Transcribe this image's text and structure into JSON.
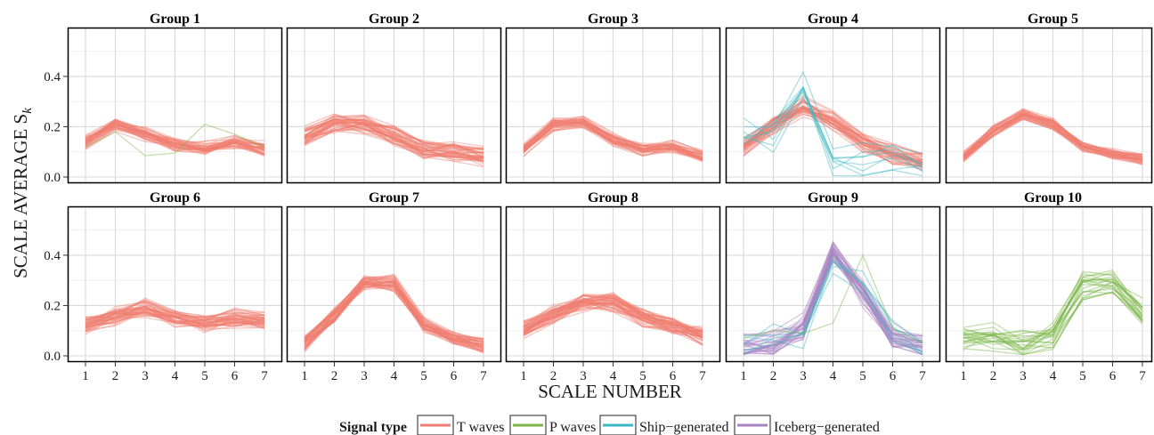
{
  "chart_data": {
    "type": "line",
    "subtype": "small-multiples parallel lines",
    "xlabel": "SCALE NUMBER",
    "ylabel_main": "SCALE AVERAGE S",
    "ylabel_sub": "k",
    "x": [
      1,
      2,
      3,
      4,
      5,
      6,
      7
    ],
    "ylim": [
      0,
      0.58
    ],
    "yticks": [
      "0.0",
      "0.2",
      "0.4"
    ],
    "grid": true,
    "legend": {
      "title": "Signal type",
      "placement": "bottom",
      "items": [
        {
          "label": "T waves",
          "color": "#f07e72"
        },
        {
          "label": "P waves",
          "color": "#7ab648"
        },
        {
          "label": "Ship−generated",
          "color": "#3cb8c4"
        },
        {
          "label": "Iceberg−generated",
          "color": "#a883c0"
        }
      ]
    },
    "panels": [
      {
        "title": "Group 1",
        "series": [
          {
            "type": "T waves",
            "count": 40,
            "mean": [
              0.14,
              0.21,
              0.17,
              0.13,
              0.11,
              0.14,
              0.11
            ],
            "spread": 0.025
          },
          {
            "type": "P waves",
            "values": [
              0.12,
              0.18,
              0.085,
              0.095,
              0.21,
              0.17,
              0.12
            ]
          }
        ]
      },
      {
        "title": "Group 2",
        "series": [
          {
            "type": "T waves",
            "count": 45,
            "mean": [
              0.16,
              0.21,
              0.21,
              0.16,
              0.11,
              0.1,
              0.08
            ],
            "spread": 0.03
          }
        ]
      },
      {
        "title": "Group 3",
        "series": [
          {
            "type": "T waves",
            "count": 40,
            "mean": [
              0.11,
              0.21,
              0.22,
              0.15,
              0.11,
              0.12,
              0.08
            ],
            "spread": 0.02
          }
        ]
      },
      {
        "title": "Group 4",
        "series": [
          {
            "type": "T waves",
            "count": 40,
            "mean": [
              0.12,
              0.21,
              0.28,
              0.22,
              0.14,
              0.09,
              0.06
            ],
            "spread": 0.03
          },
          {
            "type": "Ship−generated",
            "count": 8,
            "mean": [
              0.18,
              0.17,
              0.38,
              0.05,
              0.07,
              0.07,
              0.04
            ],
            "spread": 0.06
          }
        ]
      },
      {
        "title": "Group 5",
        "series": [
          {
            "type": "T waves",
            "count": 40,
            "mean": [
              0.08,
              0.18,
              0.25,
              0.21,
              0.12,
              0.09,
              0.07
            ],
            "spread": 0.018
          }
        ]
      },
      {
        "title": "Group 6",
        "series": [
          {
            "type": "T waves",
            "count": 45,
            "mean": [
              0.12,
              0.16,
              0.19,
              0.15,
              0.13,
              0.15,
              0.14
            ],
            "spread": 0.03
          }
        ]
      },
      {
        "title": "Group 7",
        "series": [
          {
            "type": "T waves",
            "count": 45,
            "mean": [
              0.05,
              0.16,
              0.29,
              0.29,
              0.12,
              0.07,
              0.04
            ],
            "spread": 0.025
          }
        ]
      },
      {
        "title": "Group 8",
        "series": [
          {
            "type": "T waves",
            "count": 50,
            "mean": [
              0.1,
              0.16,
              0.21,
              0.21,
              0.15,
              0.11,
              0.08
            ],
            "spread": 0.03
          }
        ]
      },
      {
        "title": "Group 9",
        "series": [
          {
            "type": "Iceberg−generated",
            "count": 30,
            "mean": [
              0.04,
              0.05,
              0.12,
              0.42,
              0.25,
              0.08,
              0.05
            ],
            "spread": 0.04
          },
          {
            "type": "Ship−generated",
            "count": 5,
            "mean": [
              0.05,
              0.07,
              0.07,
              0.38,
              0.3,
              0.09,
              0.05
            ],
            "spread": 0.05
          },
          {
            "type": "P waves",
            "values": [
              0.07,
              0.1,
              0.09,
              0.13,
              0.4,
              0.11,
              0.05
            ]
          }
        ]
      },
      {
        "title": "Group 10",
        "series": [
          {
            "type": "P waves",
            "count": 22,
            "mean": [
              0.07,
              0.08,
              0.05,
              0.09,
              0.28,
              0.3,
              0.17
            ],
            "spread": 0.05
          }
        ]
      }
    ]
  }
}
